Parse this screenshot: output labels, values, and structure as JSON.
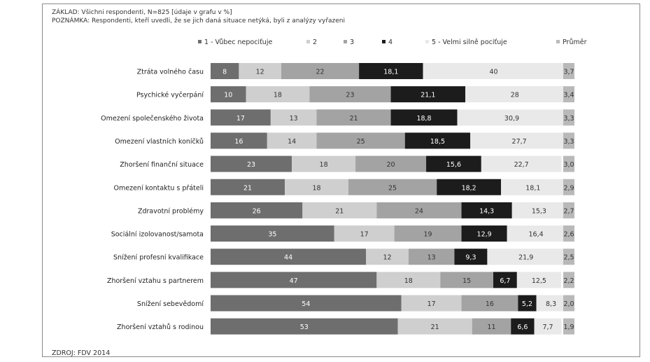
{
  "notes": {
    "base": "ZÁKLAD: Všichni respondenti, N=825  [údaje v grafu v %]",
    "note": "POZNÁMKA: Respondenti, kteří uvedli, že se jich daná situace netýká, byli z analýzy vyřazeni",
    "source": "ZDROJ: FDV 2014"
  },
  "chart_data": {
    "type": "bar",
    "orientation": "horizontal",
    "stacked": true,
    "title": "",
    "xlabel": "",
    "ylabel": "",
    "legend_position": "top",
    "categories": [
      "Ztráta volného času",
      "Psychické vyčerpání",
      "Omezení společenského života",
      "Omezení vlastních koníčků",
      "Zhoršení finanční situace",
      "Omezení kontaktu s přáteli",
      "Zdravotní problémy",
      "Sociální izolovanost/samota",
      "Snížení profesní kvalifikace",
      "Zhoršení vztahu s partnerem",
      "Snížení sebevědomí",
      "Zhoršení vztahů s rodinou"
    ],
    "series": [
      {
        "name": "1 - Vůbec nepociťuje",
        "color": "#6e6e6e",
        "label_color": "#ffffff",
        "values": [
          8,
          10,
          17,
          16,
          23,
          21,
          26,
          35,
          44,
          47,
          54,
          53
        ],
        "labels": [
          "8",
          "10",
          "17",
          "16",
          "23",
          "21",
          "26",
          "35",
          "44",
          "47",
          "54",
          "53"
        ]
      },
      {
        "name": "2",
        "color": "#cfcfcf",
        "label_color": "#333333",
        "values": [
          12,
          18,
          13,
          14,
          18,
          18,
          21,
          17,
          12,
          18,
          17,
          21
        ],
        "labels": [
          "12",
          "18",
          "13",
          "14",
          "18",
          "18",
          "21",
          "17",
          "12",
          "18",
          "17",
          "21"
        ]
      },
      {
        "name": "3",
        "color": "#a3a3a3",
        "label_color": "#333333",
        "values": [
          22,
          23,
          21,
          25,
          20,
          25,
          24,
          19,
          13,
          15,
          16,
          11
        ],
        "labels": [
          "22",
          "23",
          "21",
          "25",
          "20",
          "25",
          "24",
          "19",
          "13",
          "15",
          "16",
          "11"
        ]
      },
      {
        "name": "4",
        "color": "#1c1c1c",
        "label_color": "#ffffff",
        "values": [
          18.1,
          21.1,
          18.8,
          18.5,
          15.6,
          18.2,
          14.3,
          12.9,
          9.3,
          6.7,
          5.2,
          6.6
        ],
        "labels": [
          "18,1",
          "21,1",
          "18,8",
          "18,5",
          "15,6",
          "18,2",
          "14,3",
          "12,9",
          "9,3",
          "6,7",
          "5,2",
          "6,6"
        ]
      },
      {
        "name": "5 - Velmi silně pociťuje",
        "color": "#e9e9e9",
        "label_color": "#333333",
        "values": [
          40,
          28,
          30.9,
          27.7,
          22.7,
          18.1,
          15.3,
          16.4,
          21.9,
          12.5,
          8.3,
          7.7
        ],
        "labels": [
          "40",
          "28",
          "30,9",
          "27,7",
          "22,7",
          "18,1",
          "15,3",
          "16,4",
          "21,9",
          "12,5",
          "8,3",
          "7,7"
        ]
      }
    ],
    "average": {
      "name": "Průměr",
      "color": "#b9b9b9",
      "label_color": "#333333",
      "values": [
        3.7,
        3.4,
        3.3,
        3.3,
        3.0,
        2.9,
        2.7,
        2.6,
        2.5,
        2.2,
        2.0,
        1.9
      ],
      "labels": [
        "3,7",
        "3,4",
        "3,3",
        "3,3",
        "3,0",
        "2,9",
        "2,7",
        "2,6",
        "2,5",
        "2,2",
        "2,0",
        "1,9"
      ]
    },
    "xlim": [
      0,
      100
    ]
  }
}
